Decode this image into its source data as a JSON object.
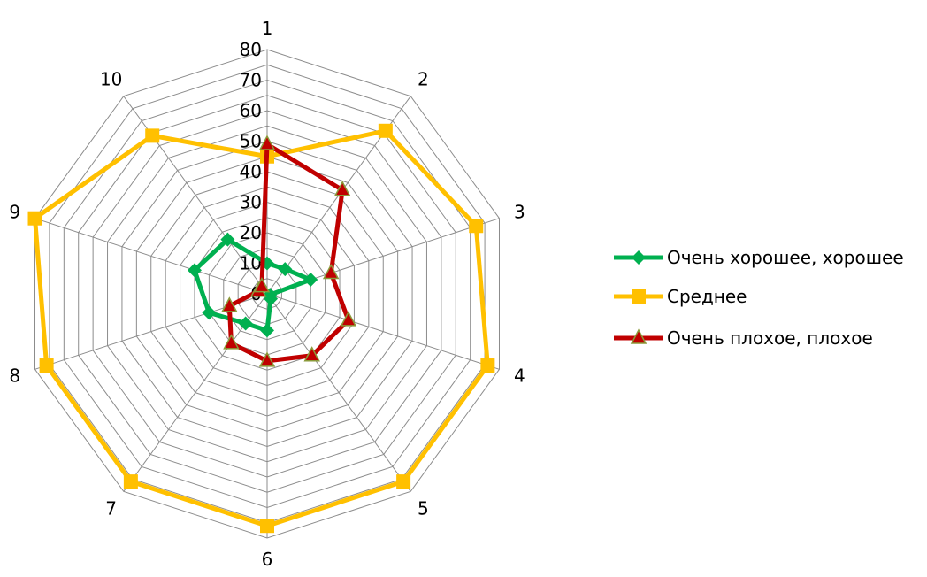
{
  "chart_data": {
    "type": "radar",
    "categories": [
      "1",
      "2",
      "3",
      "4",
      "5",
      "6",
      "7",
      "8",
      "9",
      "10"
    ],
    "rlim": [
      0,
      80
    ],
    "ticks": [
      0,
      10,
      20,
      30,
      40,
      50,
      60,
      70,
      80
    ],
    "grid": true,
    "legend_position": "right",
    "series": [
      {
        "name": "Очень хорошее, хорошее",
        "color": "#00b050",
        "marker": "diamond",
        "values": [
          10,
          10,
          15,
          1,
          2,
          12,
          12,
          20,
          25,
          22
        ]
      },
      {
        "name": "Среднее",
        "color": "#ffc000",
        "marker": "square",
        "values": [
          45,
          66,
          72,
          76,
          76,
          76,
          76,
          76,
          80,
          64
        ]
      },
      {
        "name": "Очень плохое, плохое",
        "color": "#c00000",
        "marker": "triangle",
        "values": [
          49,
          42,
          22,
          28,
          25,
          22,
          20,
          13,
          3,
          3
        ]
      }
    ]
  }
}
